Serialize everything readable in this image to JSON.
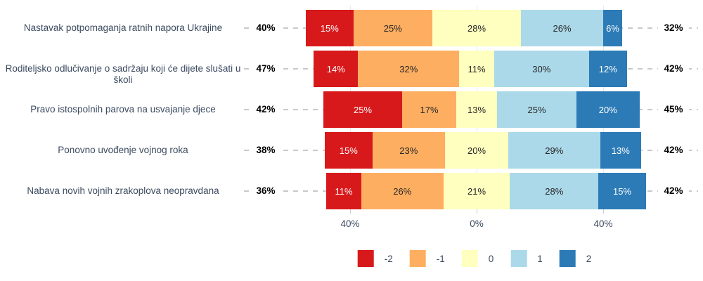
{
  "chart_data": {
    "type": "bar",
    "subtype": "diverging-stacked-likert",
    "orientation": "horizontal",
    "categories": [
      "Nastavak potpomaganja ratnih napora Ukrajine",
      "Roditeljsko odlučivanje o sadržaju koji će dijete slušati u školi",
      "Pravo istospolnih parova na usvajanje djece",
      "Ponovno uvođenje vojnog roka",
      "Nabava novih vojnih zrakoplova neopravdana"
    ],
    "series": [
      {
        "name": "-2",
        "color": "#D7191C",
        "text_color": "#ffffff",
        "values": [
          15,
          14,
          25,
          15,
          11
        ]
      },
      {
        "name": "-1",
        "color": "#FDAE61",
        "text_color": "#262626",
        "values": [
          25,
          32,
          17,
          23,
          26
        ]
      },
      {
        "name": "0",
        "color": "#FFFFBF",
        "text_color": "#262626",
        "values": [
          28,
          11,
          13,
          20,
          21
        ]
      },
      {
        "name": "1",
        "color": "#ABD9E9",
        "text_color": "#262626",
        "values": [
          26,
          30,
          25,
          29,
          28
        ]
      },
      {
        "name": "2",
        "color": "#2C7BB6",
        "text_color": "#ffffff",
        "values": [
          6,
          12,
          20,
          13,
          15
        ]
      }
    ],
    "segment_label_suffix": "%",
    "left_totals": [
      "40%",
      "47%",
      "42%",
      "38%",
      "36%"
    ],
    "right_totals": [
      "32%",
      "42%",
      "45%",
      "42%",
      "42%"
    ],
    "x_axis": {
      "ticks": [
        -40,
        0,
        40
      ],
      "tick_labels": [
        "40%",
        "0%",
        "40%"
      ],
      "grid": true
    },
    "legend": {
      "position": "bottom",
      "entries": [
        {
          "label": "-2",
          "color": "#D7191C"
        },
        {
          "label": "-1",
          "color": "#FDAE61"
        },
        {
          "label": "0",
          "color": "#FFFFBF"
        },
        {
          "label": "1",
          "color": "#ABD9E9"
        },
        {
          "label": "2",
          "color": "#2C7BB6"
        }
      ]
    },
    "style": {
      "label_color": "#3b4a5f",
      "total_color": "#000000",
      "dash_color": "#c6cacd",
      "gridline_color": "#e6e8ea",
      "background": "#ffffff"
    }
  }
}
